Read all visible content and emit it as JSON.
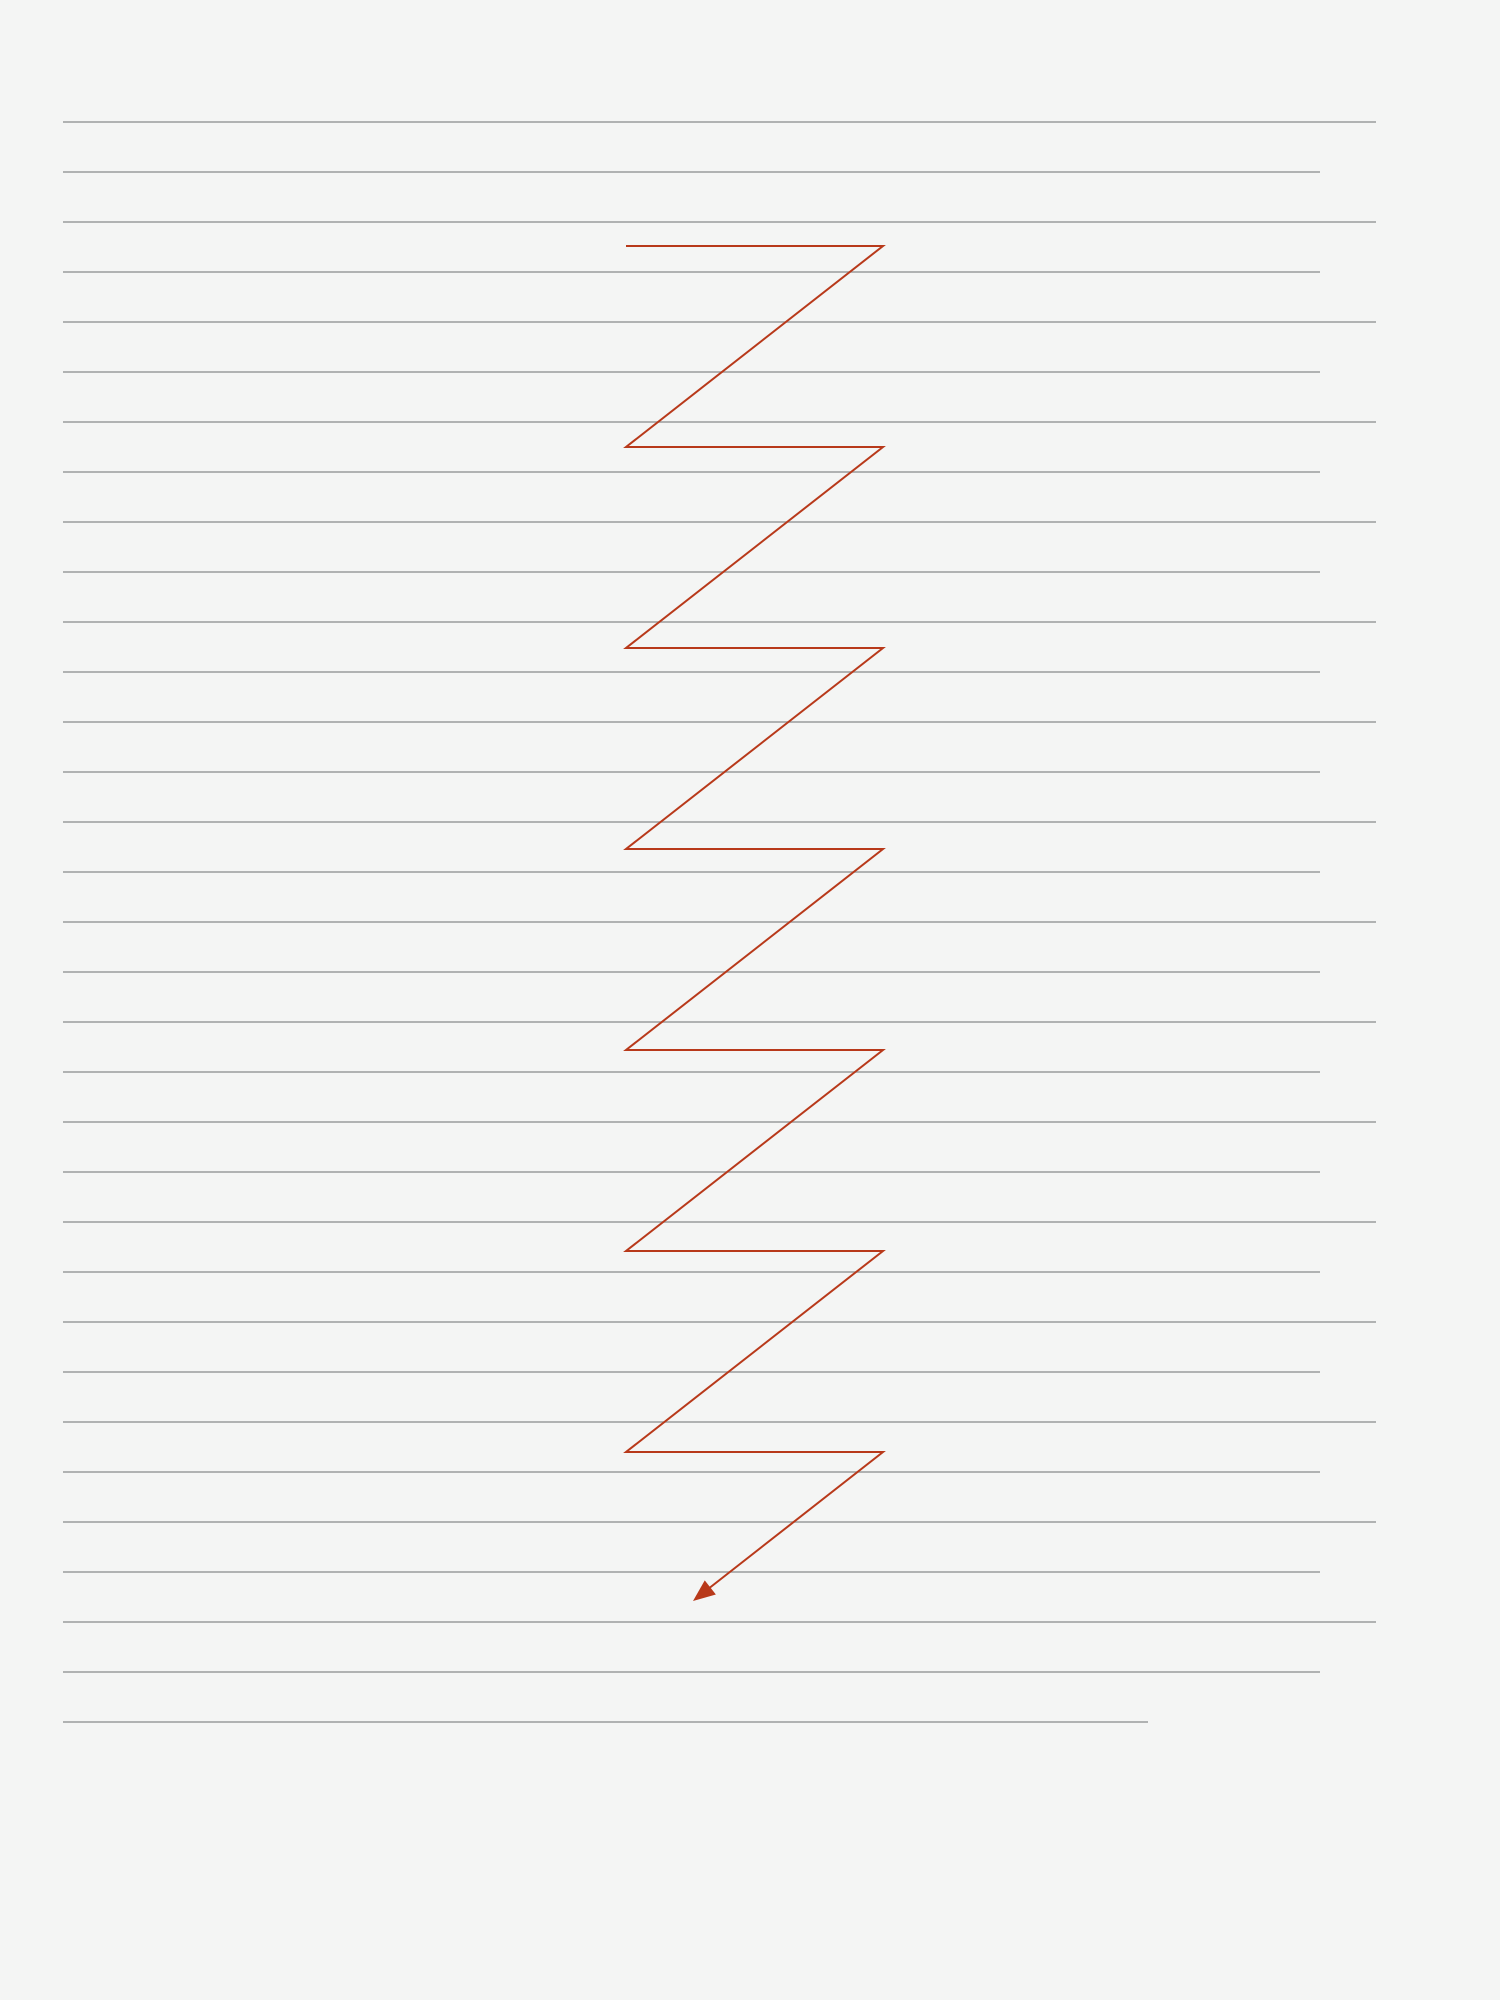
{
  "colors": {
    "background": "#f4f5f4",
    "text_lines": "#9a9c9b",
    "reading_path": "#b8391a"
  },
  "text_block": {
    "line_count": 33,
    "line_lengths": [
      "long",
      "medium",
      "long",
      "medium",
      "long",
      "medium",
      "long",
      "medium",
      "long",
      "medium",
      "long",
      "medium",
      "long",
      "medium",
      "long",
      "medium",
      "long",
      "medium",
      "long",
      "medium",
      "long",
      "medium",
      "long",
      "medium",
      "long",
      "medium",
      "long",
      "medium",
      "long",
      "medium",
      "long",
      "medium",
      "short"
    ]
  },
  "reading_path": {
    "pattern": "zigzag",
    "sweeps": 7,
    "end_marker": "arrow-head-icon"
  }
}
